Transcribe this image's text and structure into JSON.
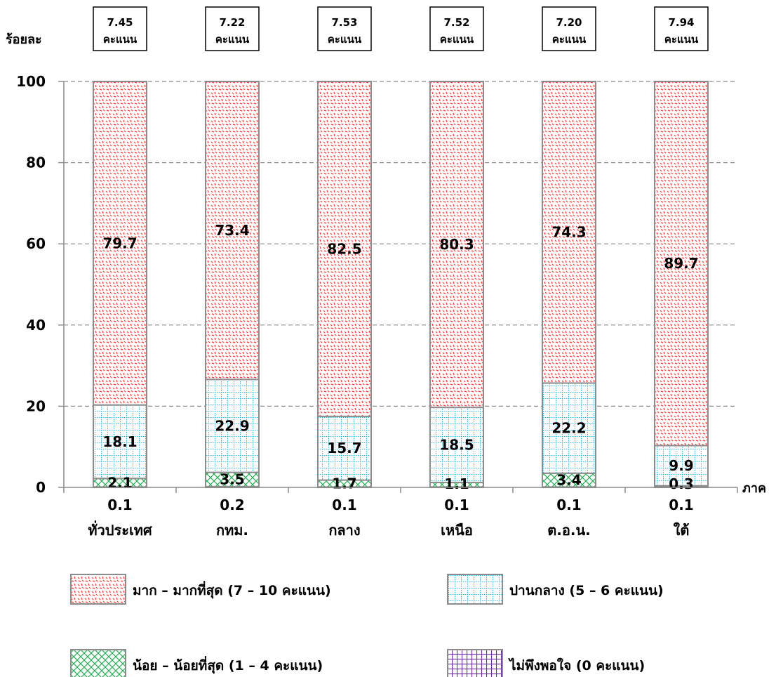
{
  "chart_data": {
    "type": "bar",
    "stacked": true,
    "ylabel": "ร้อยละ",
    "xlabel": "ภาค",
    "ylim": [
      0,
      100
    ],
    "yticks": [
      "0",
      "20",
      "40",
      "60",
      "80",
      "100"
    ],
    "grid": true,
    "legend_position": "bottom",
    "categories": [
      "ทั่วประเทศ",
      "กทม.",
      "กลาง",
      "เหนือ",
      "ต.อ.น.",
      "ใต้"
    ],
    "scores": [
      "7.45",
      "7.22",
      "7.53",
      "7.52",
      "7.20",
      "7.94"
    ],
    "score_unit": "คะแนน",
    "series": [
      {
        "name": "ไม่พึงพอใจ (0 คะแนน)",
        "color": "#7030a0",
        "pattern": "grid-purple",
        "values": [
          0.1,
          0.2,
          0.1,
          0.1,
          0.1,
          0.1
        ],
        "labels": [
          "0.1",
          "0.2",
          "0.1",
          "0.1",
          "0.1",
          "0.1"
        ]
      },
      {
        "name": "น้อย – น้อยที่สุด (1 – 4 คะแนน)",
        "color": "#00b050",
        "pattern": "crosshatch-green",
        "values": [
          2.1,
          3.5,
          1.7,
          1.1,
          3.4,
          0.3
        ],
        "labels": [
          "2.1",
          "3.5",
          "1.7",
          "1.1",
          "3.4",
          "0.3"
        ]
      },
      {
        "name": "ปานกลาง (5 – 6 คะแนน)",
        "color": "#00b0f0",
        "pattern": "dotted-grid-cyan",
        "values": [
          18.1,
          22.9,
          15.7,
          18.5,
          22.2,
          9.9
        ],
        "labels": [
          "18.1",
          "22.9",
          "15.7",
          "18.5",
          "22.2",
          "9.9"
        ]
      },
      {
        "name": "มาก – มากที่สุด (7 – 10 คะแนน)",
        "color": "#ff0000",
        "pattern": "dots-red",
        "values": [
          79.7,
          73.4,
          82.5,
          80.3,
          74.3,
          89.7
        ],
        "labels": [
          "79.7",
          "73.4",
          "82.5",
          "80.3",
          "74.3",
          "89.7"
        ]
      }
    ],
    "legend": [
      {
        "label": "มาก – มากที่สุด (7 – 10 คะแนน)",
        "pattern": "dots-red"
      },
      {
        "label": "ปานกลาง (5 – 6 คะแนน)",
        "pattern": "dotted-grid-cyan"
      },
      {
        "label": "น้อย – น้อยที่สุด (1 – 4 คะแนน)",
        "pattern": "crosshatch-green"
      },
      {
        "label": "ไม่พึงพอใจ (0 คะแนน)",
        "pattern": "grid-purple"
      }
    ]
  }
}
